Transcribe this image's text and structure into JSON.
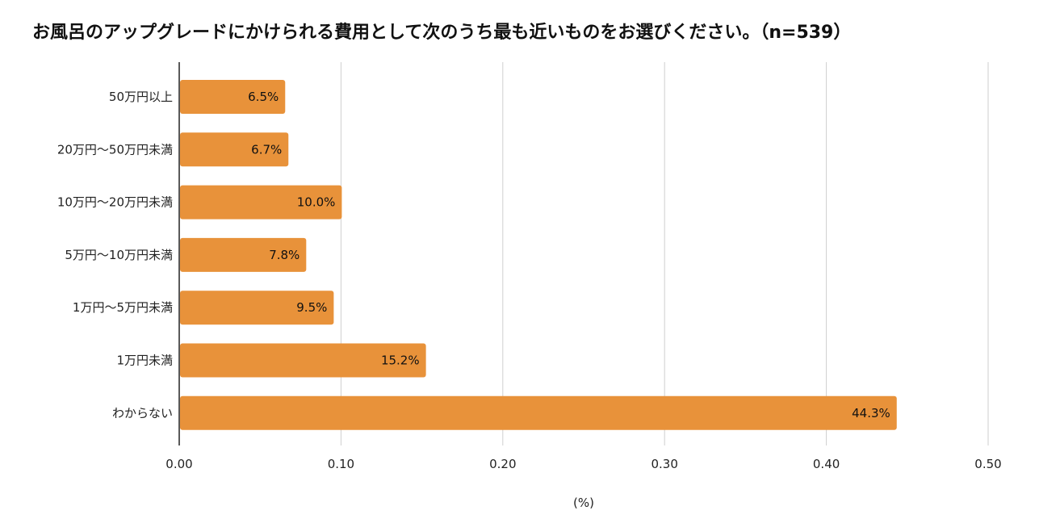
{
  "chart_data": {
    "type": "bar",
    "orientation": "horizontal",
    "title": "お風呂のアップグレードにかけられる費用として次のうち最も近いものをお選びください。（n=539）",
    "categories": [
      "50万円以上",
      "20万円〜50万円未満",
      "10万円〜20万円未満",
      "5万円〜10万円未満",
      "1万円〜5万円未満",
      "1万円未満",
      "わからない"
    ],
    "values": [
      0.065,
      0.067,
      0.1,
      0.078,
      0.095,
      0.152,
      0.443
    ],
    "data_labels": [
      "6.5%",
      "6.7%",
      "10.0%",
      "7.8%",
      "9.5%",
      "15.2%",
      "44.3%"
    ],
    "xlabel": "(%)",
    "ylabel": "",
    "xlim": [
      0,
      0.5
    ],
    "xticks": [
      "0.00",
      "0.10",
      "0.20",
      "0.30",
      "0.40",
      "0.50"
    ],
    "grid": "vertical",
    "bar_color": "#E8923A"
  }
}
